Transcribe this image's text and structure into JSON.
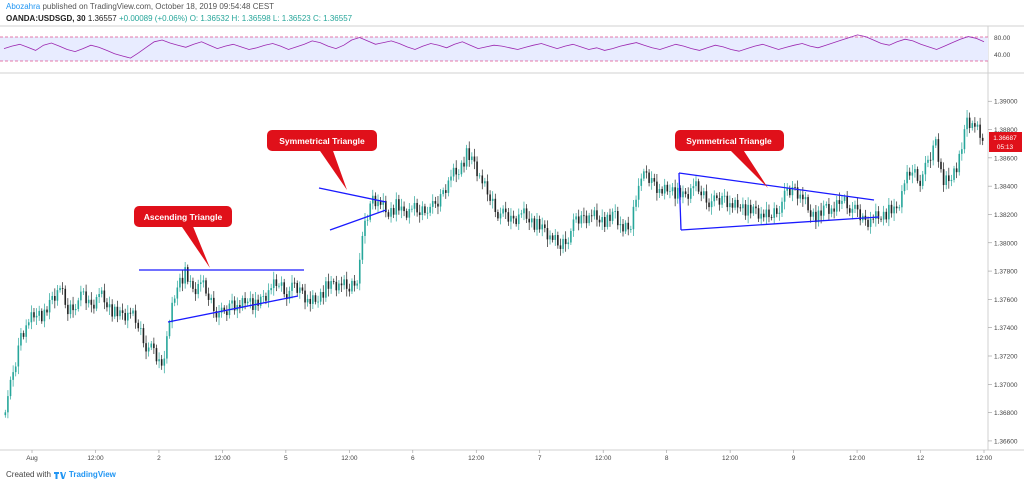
{
  "header": {
    "author": "Abozahra",
    "published_text": "published on TradingView.com, October 18, 2019 09:54:48 CEST",
    "symbol": "OANDA:USDSGD, 30",
    "last_price": "1.36557",
    "change": "+0.00089 (+0.06%)",
    "open": "O: 1.36532",
    "high": "H: 1.36598",
    "low": "L: 1.36523",
    "close": "C: 1.36557"
  },
  "footer": {
    "created_with": "Created with",
    "brand": "TradingView"
  },
  "colors": {
    "bull": "#26a69a",
    "bear": "#222222",
    "trendline": "#1a1aff",
    "callout": "#e0101a",
    "rsi": "#9c27b0",
    "price_tag": "#e0101a"
  },
  "chart_data": [
    {
      "type": "line",
      "name": "RSI",
      "y_ticks": [
        "80.00",
        "40.00"
      ],
      "ylim": [
        0,
        100
      ],
      "values": [
        52,
        58,
        62,
        55,
        48,
        60,
        65,
        58,
        50,
        45,
        52,
        60,
        55,
        48,
        40,
        35,
        30,
        42,
        55,
        68,
        72,
        65,
        60,
        55,
        62,
        68,
        60,
        52,
        58,
        62,
        56,
        50,
        54,
        60,
        64,
        58,
        50,
        56,
        62,
        70,
        66,
        58,
        52,
        60,
        72,
        78,
        70,
        62,
        66,
        70,
        64,
        56,
        50,
        58,
        64,
        60,
        54,
        62,
        68,
        60,
        52,
        56,
        60,
        58,
        54,
        50,
        55,
        60,
        64,
        58,
        52,
        58,
        62,
        56,
        50,
        54,
        48,
        52,
        58,
        62,
        66,
        60,
        54,
        50,
        56,
        62,
        58,
        52,
        48,
        54,
        60,
        56,
        50,
        46,
        52,
        58,
        62,
        56,
        50,
        55,
        60,
        64,
        58,
        54,
        60,
        66,
        72,
        78,
        84,
        80,
        72,
        64,
        60,
        68,
        74,
        70,
        62,
        56,
        50,
        58,
        66,
        74,
        80,
        76,
        68
      ]
    },
    {
      "type": "candlestick",
      "name": "USDSGD 30m",
      "ylim": [
        1.3655,
        1.3915
      ],
      "y_ticks": [
        "1.39000",
        "1.38800",
        "1.38600",
        "1.38400",
        "1.38200",
        "1.38000",
        "1.37800",
        "1.37600",
        "1.37400",
        "1.37200",
        "1.37000",
        "1.36800",
        "1.36600"
      ],
      "x_ticks": [
        "Aug",
        "12:00",
        "2",
        "12:00",
        "5",
        "12:00",
        "6",
        "12:00",
        "7",
        "12:00",
        "8",
        "12:00",
        "9",
        "12:00",
        "12",
        "12:00"
      ],
      "price_tag": {
        "price": "1.36687",
        "countdown": "05:13"
      },
      "close_path": [
        1.3685,
        1.3705,
        1.3735,
        1.3745,
        1.3752,
        1.3748,
        1.376,
        1.3768,
        1.3752,
        1.3758,
        1.3762,
        1.3755,
        1.3765,
        1.3758,
        1.375,
        1.3748,
        1.375,
        1.3742,
        1.3728,
        1.3722,
        1.3712,
        1.3745,
        1.3772,
        1.3778,
        1.3765,
        1.3772,
        1.3762,
        1.3752,
        1.3748,
        1.3758,
        1.3755,
        1.3762,
        1.3755,
        1.376,
        1.3768,
        1.3772,
        1.3765,
        1.3768,
        1.3765,
        1.3758,
        1.3762,
        1.3768,
        1.377,
        1.377,
        1.3768,
        1.3776,
        1.3812,
        1.3832,
        1.3828,
        1.3822,
        1.3826,
        1.382,
        1.3824,
        1.3822,
        1.3826,
        1.3824,
        1.3836,
        1.3848,
        1.3852,
        1.3862,
        1.3855,
        1.3842,
        1.3832,
        1.3822,
        1.3818,
        1.3816,
        1.3822,
        1.3818,
        1.3812,
        1.3808,
        1.3802,
        1.3798,
        1.3805,
        1.3815,
        1.3818,
        1.382,
        1.3818,
        1.3815,
        1.382,
        1.3808,
        1.3812,
        1.3845,
        1.3846,
        1.3842,
        1.3836,
        1.384,
        1.3834,
        1.3832,
        1.384,
        1.3836,
        1.383,
        1.3828,
        1.3832,
        1.3826,
        1.3828,
        1.3822,
        1.3822,
        1.3818,
        1.382,
        1.3826,
        1.3835,
        1.3838,
        1.3832,
        1.3822,
        1.3818,
        1.3825,
        1.3822,
        1.3832,
        1.3826,
        1.382,
        1.3815,
        1.3818,
        1.382,
        1.3822,
        1.3822,
        1.3842,
        1.3852,
        1.3845,
        1.3855,
        1.3872,
        1.3842,
        1.3848,
        1.3858,
        1.3886,
        1.3882,
        1.3872
      ],
      "annotations": [
        {
          "text": "Ascending Triangle"
        },
        {
          "text": "Symmetrical Triangle"
        },
        {
          "text": "Symmetrical Triangle"
        }
      ]
    }
  ]
}
